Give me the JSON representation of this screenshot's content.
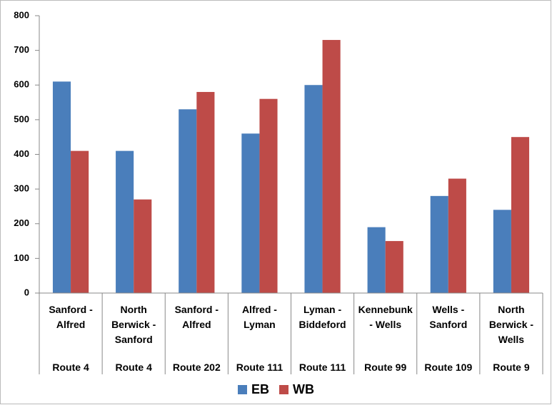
{
  "chart_data": {
    "type": "bar",
    "categories": [
      "Sanford - Alfred",
      "North Berwick - Sanford",
      "Sanford - Alfred",
      "Alfred - Lyman",
      "Lyman - Biddeford",
      "Kennebunk - Wells",
      "Wells - Sanford",
      "North Berwick - Wells"
    ],
    "category_groups": [
      "Route 4",
      "Route 4",
      "Route 202",
      "Route 111",
      "Route 111",
      "Route 99",
      "Route 109",
      "Route 9"
    ],
    "series": [
      {
        "name": "EB",
        "color": "#4a7ebb",
        "values": [
          610,
          410,
          530,
          460,
          600,
          190,
          280,
          240
        ]
      },
      {
        "name": "WB",
        "color": "#be4b48",
        "values": [
          410,
          270,
          580,
          560,
          730,
          150,
          330,
          450
        ]
      }
    ],
    "ylim": [
      0,
      800
    ],
    "yticks": [
      0,
      100,
      200,
      300,
      400,
      500,
      600,
      700,
      800
    ],
    "grid": false,
    "legend": "bottom"
  }
}
